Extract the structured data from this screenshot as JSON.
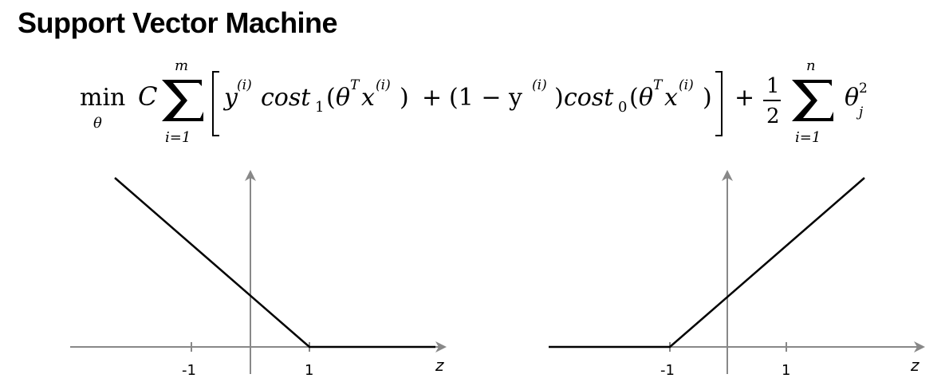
{
  "title": "Support Vector Machine",
  "formula": {
    "min": "min",
    "min_sub": "θ",
    "C": "C",
    "sum1_top": "m",
    "sum1_bottom": "i=1",
    "term1": "y",
    "sup_i": "(i)",
    "cost1": "cost",
    "cost1_sub": "1",
    "theta": "θ",
    "T": "T",
    "x": "x",
    "plus": "+",
    "one_minus": "(1 − y",
    "cost0": "cost",
    "cost0_sub": "0",
    "half_num": "1",
    "half_den": "2",
    "sum2_top": "n",
    "sum2_bottom": "i=1",
    "theta_j": "θ",
    "j": "j",
    "sq": "2"
  },
  "plots": [
    {
      "x_label": "z",
      "ticks": [
        "-1",
        "1"
      ],
      "curve": "cost1: slope down to z=1, then flat at 0"
    },
    {
      "x_label": "z",
      "ticks": [
        "-1",
        "1"
      ],
      "curve": "cost0: flat at 0 until z=-1, then slope up"
    }
  ],
  "colors": {
    "axis": "#888888",
    "curve": "#000000",
    "text": "#000000"
  }
}
